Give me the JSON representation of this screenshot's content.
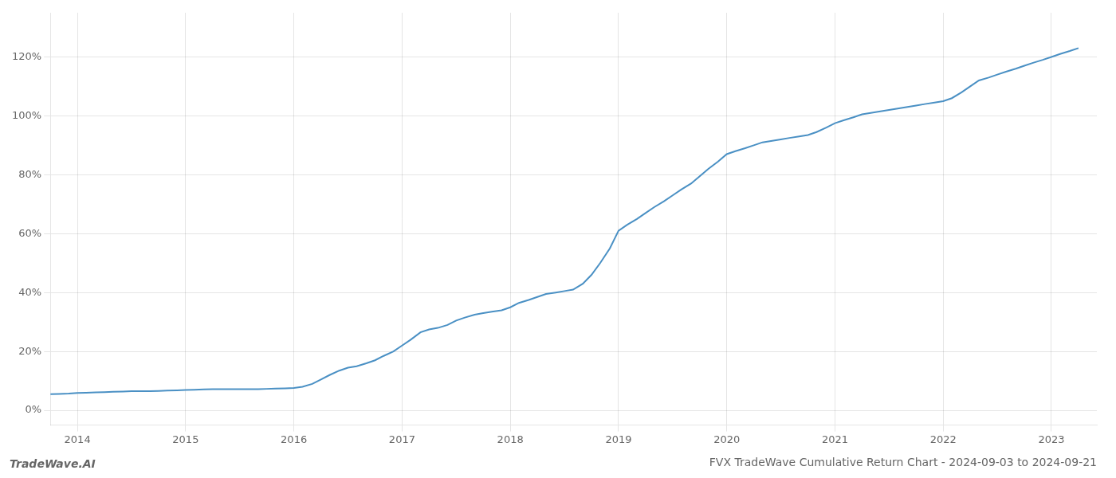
{
  "chart_data": {
    "type": "line",
    "title": "FVX TradeWave Cumulative Return Chart - 2024-09-03 to 2024-09-21",
    "annotations": [
      "TradeWave.AI"
    ],
    "color": "#4a90c4",
    "grid": true,
    "x": [
      2013.75,
      2013.83,
      2013.92,
      2014.0,
      2014.08,
      2014.17,
      2014.25,
      2014.33,
      2014.42,
      2014.5,
      2014.58,
      2014.67,
      2014.75,
      2014.83,
      2014.92,
      2015.0,
      2015.08,
      2015.17,
      2015.25,
      2015.33,
      2015.42,
      2015.5,
      2015.58,
      2015.67,
      2015.75,
      2015.83,
      2015.92,
      2016.0,
      2016.08,
      2016.17,
      2016.25,
      2016.33,
      2016.42,
      2016.5,
      2016.58,
      2016.67,
      2016.75,
      2016.83,
      2016.92,
      2017.0,
      2017.08,
      2017.17,
      2017.25,
      2017.33,
      2017.42,
      2017.5,
      2017.58,
      2017.67,
      2017.75,
      2017.83,
      2017.92,
      2018.0,
      2018.08,
      2018.17,
      2018.25,
      2018.33,
      2018.42,
      2018.5,
      2018.58,
      2018.67,
      2018.75,
      2018.83,
      2018.92,
      2019.0,
      2019.08,
      2019.17,
      2019.25,
      2019.33,
      2019.42,
      2019.5,
      2019.58,
      2019.67,
      2019.75,
      2019.83,
      2019.92,
      2020.0,
      2020.08,
      2020.17,
      2020.25,
      2020.33,
      2020.42,
      2020.5,
      2020.58,
      2020.67,
      2020.75,
      2020.83,
      2020.92,
      2021.0,
      2021.08,
      2021.17,
      2021.25,
      2021.33,
      2021.42,
      2021.5,
      2021.58,
      2021.67,
      2021.75,
      2021.83,
      2021.92,
      2022.0,
      2022.08,
      2022.17,
      2022.25,
      2022.33,
      2022.42,
      2022.5,
      2022.58,
      2022.67,
      2022.75,
      2022.83,
      2022.92,
      2023.0,
      2023.08,
      2023.17,
      2023.25
    ],
    "values": [
      5.5,
      5.6,
      5.7,
      5.9,
      6.0,
      6.1,
      6.2,
      6.3,
      6.4,
      6.5,
      6.5,
      6.5,
      6.6,
      6.7,
      6.8,
      6.9,
      7.0,
      7.1,
      7.2,
      7.2,
      7.2,
      7.2,
      7.2,
      7.2,
      7.3,
      7.4,
      7.5,
      7.6,
      8.0,
      9.0,
      10.5,
      12.0,
      13.5,
      14.5,
      15.0,
      16.0,
      17.0,
      18.5,
      20.0,
      22.0,
      24.0,
      26.5,
      27.5,
      28.0,
      29.0,
      30.5,
      31.5,
      32.5,
      33.0,
      33.5,
      34.0,
      35.0,
      36.5,
      37.5,
      38.5,
      39.5,
      40.0,
      40.5,
      41.0,
      43.0,
      46.0,
      50.0,
      55.0,
      61.0,
      63.0,
      65.0,
      67.0,
      69.0,
      71.0,
      73.0,
      75.0,
      77.0,
      79.5,
      82.0,
      84.5,
      87.0,
      88.0,
      89.0,
      90.0,
      91.0,
      91.5,
      92.0,
      92.5,
      93.0,
      93.5,
      94.5,
      96.0,
      97.5,
      98.5,
      99.5,
      100.5,
      101.0,
      101.5,
      102.0,
      102.5,
      103.0,
      103.5,
      104.0,
      104.5,
      105.0,
      106.0,
      108.0,
      110.0,
      112.0,
      113.0,
      114.0,
      115.0,
      116.0,
      117.0,
      118.0,
      119.0,
      120.0,
      121.0,
      122.0,
      123.0
    ],
    "xlim": [
      2013.75,
      2023.42
    ],
    "xticks": [
      2014,
      2015,
      2016,
      2017,
      2018,
      2019,
      2020,
      2021,
      2022,
      2023
    ],
    "ylim": [
      -5,
      135
    ],
    "yticks": [
      {
        "value": 0,
        "label": "0%"
      },
      {
        "value": 20,
        "label": "20%"
      },
      {
        "value": 40,
        "label": "40%"
      },
      {
        "value": 60,
        "label": "60%"
      },
      {
        "value": 80,
        "label": "80%"
      },
      {
        "value": 100,
        "label": "100%"
      },
      {
        "value": 120,
        "label": "120%"
      }
    ]
  }
}
